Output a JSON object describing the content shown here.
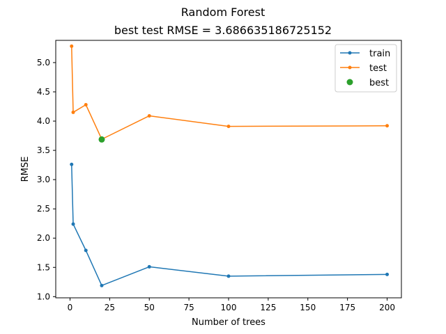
{
  "chart_data": {
    "type": "line",
    "title": "Random Forest",
    "subtitle": "best test RMSE = 3.686635186725152",
    "xlabel": "Number of trees",
    "ylabel": "RMSE",
    "xlim": [
      -9,
      209
    ],
    "ylim": [
      0.98,
      5.38
    ],
    "xticks": [
      0,
      25,
      50,
      75,
      100,
      125,
      150,
      175,
      200
    ],
    "xtick_labels": [
      "0",
      "25",
      "50",
      "75",
      "100",
      "125",
      "150",
      "175",
      "200"
    ],
    "yticks": [
      1.0,
      1.5,
      2.0,
      2.5,
      3.0,
      3.5,
      4.0,
      4.5,
      5.0
    ],
    "ytick_labels": [
      "1.0",
      "1.5",
      "2.0",
      "2.5",
      "3.0",
      "3.5",
      "4.0",
      "4.5",
      "5.0"
    ],
    "grid": false,
    "legend_position": "top-right",
    "series": [
      {
        "name": "train",
        "color": "#1f77b4",
        "marker": "dot",
        "x": [
          1,
          2,
          10,
          20,
          50,
          100,
          200
        ],
        "y": [
          3.26,
          2.24,
          1.79,
          1.19,
          1.51,
          1.35,
          1.38
        ]
      },
      {
        "name": "test",
        "color": "#ff7f0e",
        "marker": "dot",
        "x": [
          1,
          2,
          10,
          20,
          50,
          100,
          200
        ],
        "y": [
          5.28,
          4.15,
          4.28,
          3.69,
          4.09,
          3.91,
          3.92
        ]
      },
      {
        "name": "best",
        "color": "#2ca02c",
        "marker": "circle",
        "x": [
          20
        ],
        "y": [
          3.686635186725152
        ]
      }
    ]
  }
}
